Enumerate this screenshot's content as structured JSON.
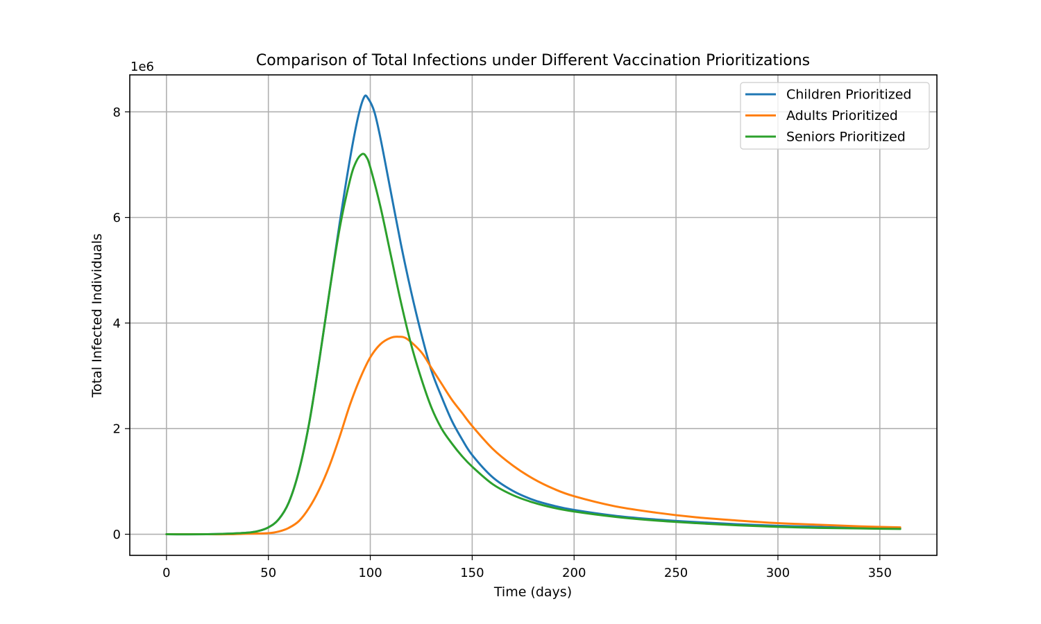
{
  "chart_data": {
    "type": "line",
    "title": "Comparison of Total Infections under Different Vaccination Prioritizations",
    "xlabel": "Time (days)",
    "ylabel": "Total Infected Individuals",
    "y_offset_label": "1e6",
    "xlim": [
      -18,
      378
    ],
    "ylim": [
      -0.4,
      8.7
    ],
    "xticks": [
      0,
      50,
      100,
      150,
      200,
      250,
      300,
      350
    ],
    "xtick_labels": [
      "0",
      "50",
      "100",
      "150",
      "200",
      "250",
      "300",
      "350"
    ],
    "yticks": [
      0,
      2,
      4,
      6,
      8
    ],
    "ytick_labels": [
      "0",
      "2",
      "4",
      "6",
      "8"
    ],
    "y_unit_scale": 1000000,
    "grid": true,
    "legend_position": "top-right",
    "series": [
      {
        "name": "Children Prioritized",
        "color": "#1f77b4",
        "points": [
          [
            0,
            0
          ],
          [
            20,
            0
          ],
          [
            30,
            0.01
          ],
          [
            40,
            0.03
          ],
          [
            45,
            0.06
          ],
          [
            50,
            0.13
          ],
          [
            55,
            0.28
          ],
          [
            60,
            0.6
          ],
          [
            65,
            1.2
          ],
          [
            70,
            2.1
          ],
          [
            75,
            3.3
          ],
          [
            80,
            4.6
          ],
          [
            85,
            5.9
          ],
          [
            90,
            7.1
          ],
          [
            94,
            7.9
          ],
          [
            97,
            8.28
          ],
          [
            99,
            8.25
          ],
          [
            102,
            8.0
          ],
          [
            105,
            7.5
          ],
          [
            110,
            6.5
          ],
          [
            115,
            5.5
          ],
          [
            120,
            4.6
          ],
          [
            125,
            3.8
          ],
          [
            130,
            3.1
          ],
          [
            135,
            2.6
          ],
          [
            140,
            2.15
          ],
          [
            145,
            1.8
          ],
          [
            150,
            1.5
          ],
          [
            160,
            1.08
          ],
          [
            170,
            0.82
          ],
          [
            180,
            0.65
          ],
          [
            190,
            0.54
          ],
          [
            200,
            0.46
          ],
          [
            220,
            0.35
          ],
          [
            240,
            0.28
          ],
          [
            260,
            0.23
          ],
          [
            280,
            0.19
          ],
          [
            300,
            0.16
          ],
          [
            320,
            0.14
          ],
          [
            340,
            0.12
          ],
          [
            360,
            0.11
          ]
        ]
      },
      {
        "name": "Adults Prioritized",
        "color": "#ff7f0e",
        "points": [
          [
            0,
            0
          ],
          [
            20,
            0
          ],
          [
            30,
            0
          ],
          [
            40,
            0.01
          ],
          [
            50,
            0.02
          ],
          [
            55,
            0.05
          ],
          [
            60,
            0.12
          ],
          [
            65,
            0.25
          ],
          [
            70,
            0.5
          ],
          [
            75,
            0.85
          ],
          [
            80,
            1.3
          ],
          [
            85,
            1.85
          ],
          [
            90,
            2.45
          ],
          [
            95,
            2.95
          ],
          [
            100,
            3.35
          ],
          [
            105,
            3.6
          ],
          [
            110,
            3.72
          ],
          [
            114,
            3.74
          ],
          [
            118,
            3.7
          ],
          [
            125,
            3.45
          ],
          [
            130,
            3.15
          ],
          [
            135,
            2.85
          ],
          [
            140,
            2.55
          ],
          [
            145,
            2.3
          ],
          [
            150,
            2.05
          ],
          [
            160,
            1.62
          ],
          [
            170,
            1.3
          ],
          [
            180,
            1.05
          ],
          [
            190,
            0.86
          ],
          [
            200,
            0.72
          ],
          [
            220,
            0.53
          ],
          [
            240,
            0.41
          ],
          [
            260,
            0.32
          ],
          [
            280,
            0.26
          ],
          [
            300,
            0.21
          ],
          [
            320,
            0.18
          ],
          [
            340,
            0.15
          ],
          [
            360,
            0.13
          ]
        ]
      },
      {
        "name": "Seniors Prioritized",
        "color": "#2ca02c",
        "points": [
          [
            0,
            0
          ],
          [
            20,
            0
          ],
          [
            30,
            0.01
          ],
          [
            40,
            0.03
          ],
          [
            45,
            0.06
          ],
          [
            50,
            0.13
          ],
          [
            55,
            0.28
          ],
          [
            60,
            0.6
          ],
          [
            65,
            1.2
          ],
          [
            70,
            2.1
          ],
          [
            75,
            3.3
          ],
          [
            80,
            4.6
          ],
          [
            85,
            5.8
          ],
          [
            90,
            6.7
          ],
          [
            93,
            7.05
          ],
          [
            96,
            7.2
          ],
          [
            98,
            7.15
          ],
          [
            100,
            6.95
          ],
          [
            105,
            6.2
          ],
          [
            110,
            5.3
          ],
          [
            115,
            4.4
          ],
          [
            120,
            3.6
          ],
          [
            125,
            2.95
          ],
          [
            130,
            2.4
          ],
          [
            135,
            2.0
          ],
          [
            140,
            1.72
          ],
          [
            145,
            1.48
          ],
          [
            150,
            1.28
          ],
          [
            160,
            0.95
          ],
          [
            170,
            0.74
          ],
          [
            180,
            0.6
          ],
          [
            190,
            0.5
          ],
          [
            200,
            0.43
          ],
          [
            220,
            0.33
          ],
          [
            240,
            0.26
          ],
          [
            260,
            0.21
          ],
          [
            280,
            0.17
          ],
          [
            300,
            0.14
          ],
          [
            320,
            0.12
          ],
          [
            340,
            0.11
          ],
          [
            360,
            0.1
          ]
        ]
      }
    ]
  }
}
